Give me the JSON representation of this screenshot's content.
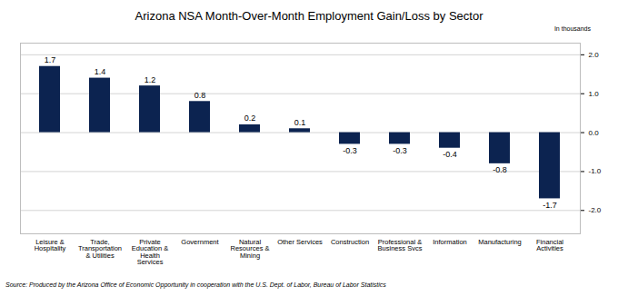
{
  "chart_data": {
    "type": "bar",
    "title": "Arizona NSA Month-Over-Month Employment Gain/Loss by Sector",
    "ylabel": "In thousands",
    "source": "Source: Produced by the Arizona Office of Economic Opportunity in cooperation with the U.S. Dept. of Labor, Bureau of Labor Statistics",
    "categories": [
      "Leisure & Hospitality",
      "Trade, Transportation & Utilities",
      "Private Education & Health Services",
      "Government",
      "Natural Resources & Mining",
      "Other Services",
      "Construction",
      "Professional & Business Svcs",
      "Information",
      "Manufacturing",
      "Financial Activities"
    ],
    "values": [
      1.7,
      1.4,
      1.2,
      0.8,
      0.2,
      0.1,
      -0.3,
      -0.3,
      -0.4,
      -0.8,
      -1.7
    ],
    "color": "#0c2350",
    "ylim": [
      -2.6,
      2.3
    ],
    "yticks": [
      {
        "value": -2,
        "label": "-2.0"
      },
      {
        "value": -1,
        "label": "-1.0"
      },
      {
        "value": 0,
        "label": "0.0"
      },
      {
        "value": 1,
        "label": "1.0"
      },
      {
        "value": 2,
        "label": "2.0"
      }
    ],
    "grid": true,
    "data_labels": true
  }
}
